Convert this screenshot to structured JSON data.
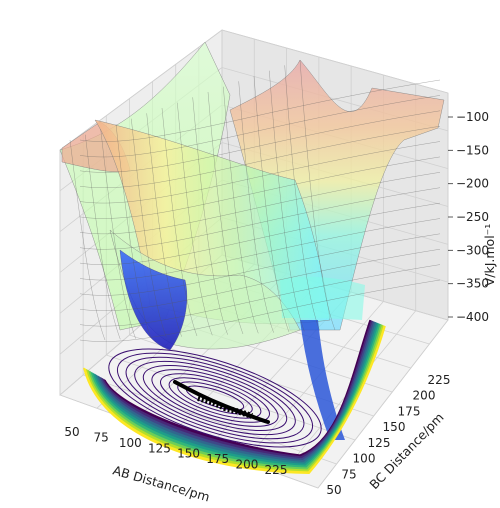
{
  "chart_data": {
    "type": "surface3d",
    "title": "",
    "xlabel": "AB Distance/pm",
    "ylabel": "BC Distance/pm",
    "zlabel": "V/kJ.mol$^{-1}$",
    "zlabel_display": "V/kJ.mol⁻¹",
    "x_ticks": [
      50,
      75,
      100,
      125,
      150,
      175,
      200,
      225
    ],
    "y_ticks": [
      50,
      75,
      100,
      125,
      150,
      175,
      200,
      225
    ],
    "z_ticks": [
      -100,
      -150,
      -200,
      -250,
      -300,
      -350,
      -400
    ],
    "xlim": [
      40,
      250
    ],
    "ylim": [
      40,
      250
    ],
    "zlim": [
      -430,
      -80
    ],
    "surface_colormap": "jet",
    "contour_colormap": "viridis",
    "grid": true,
    "trajectory_color": "#000000"
  }
}
